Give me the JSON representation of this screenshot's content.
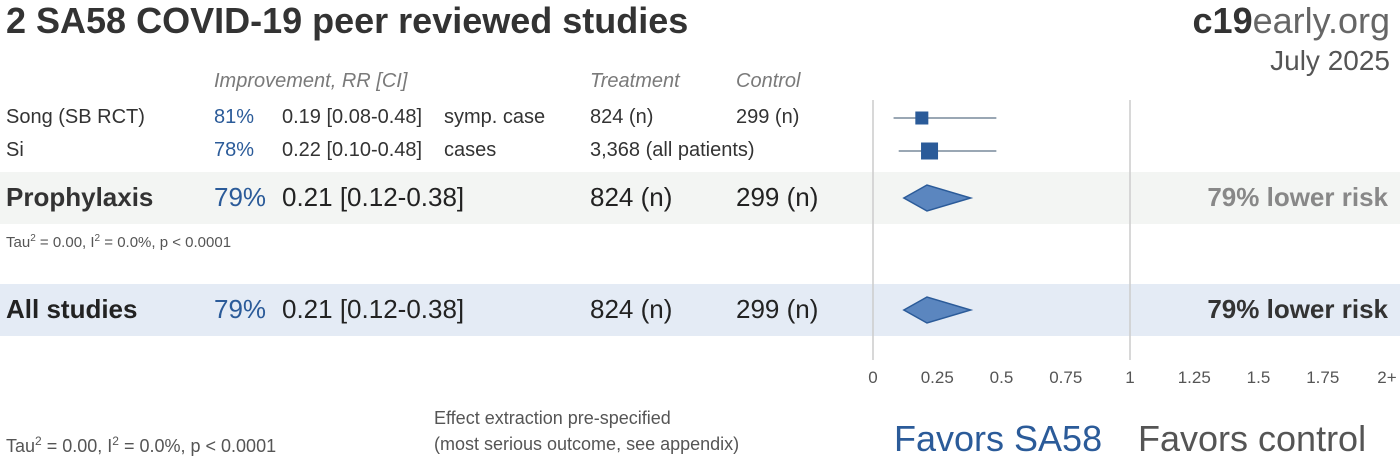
{
  "header": {
    "title": "2 SA58 COVID-19 peer reviewed studies",
    "brand_bold": "c19",
    "brand_light": "early.org",
    "date": "July 2025"
  },
  "columns": {
    "improvement": "Improvement, RR [CI]",
    "treatment": "Treatment",
    "control": "Control"
  },
  "studies": [
    {
      "name": "Song (SB RCT)",
      "improvement": "81%",
      "rr_text": "0.19 [0.08-0.48]",
      "outcome": "symp. case",
      "treatment": "824 (n)",
      "control": "299 (n)"
    },
    {
      "name": "Si",
      "improvement": "78%",
      "rr_text": "0.22 [0.10-0.48]",
      "outcome": "cases",
      "treatment": "3,368 (all patients)",
      "control": ""
    }
  ],
  "groups": [
    {
      "name": "Prophylaxis",
      "improvement": "79%",
      "rr_text": "0.21 [0.12-0.38]",
      "treatment": "824 (n)",
      "control": "299 (n)",
      "risk": "79% lower risk",
      "stats_pre": "Tau",
      "stats_mid": " = 0.00, I",
      "stats_post": " = 0.0%, p < 0.0001"
    },
    {
      "name": "All studies",
      "improvement": "79%",
      "rr_text": "0.21 [0.12-0.38]",
      "treatment": "824 (n)",
      "control": "299 (n)",
      "risk": "79% lower risk"
    }
  ],
  "footer": {
    "stats_pre": "Tau",
    "stats_mid": " = 0.00, I",
    "stats_post": " = 0.0%, p < 0.0001",
    "superscript": "2",
    "note_line1": "Effect extraction pre-specified",
    "note_line2": "(most serious outcome, see appendix)",
    "favors_left": "Favors SA58",
    "favors_right": "Favors control"
  },
  "chart_data": {
    "type": "forest",
    "x_ticks": [
      "0",
      "0.25",
      "0.5",
      "0.75",
      "1",
      "1.25",
      "1.5",
      "1.75",
      "2+"
    ],
    "xlim": [
      0,
      2
    ],
    "reference_line": 1,
    "studies": [
      {
        "name": "Song (SB RCT)",
        "rr": 0.19,
        "ci": [
          0.08,
          0.48
        ]
      },
      {
        "name": "Si",
        "rr": 0.22,
        "ci": [
          0.1,
          0.48
        ]
      }
    ],
    "pooled": [
      {
        "name": "Prophylaxis",
        "rr": 0.21,
        "ci": [
          0.12,
          0.38
        ]
      },
      {
        "name": "All studies",
        "rr": 0.21,
        "ci": [
          0.12,
          0.38
        ]
      }
    ],
    "colors": {
      "marker": "#2b5b99",
      "diamond_fill": "#5b86bf",
      "ci_line": "#9aa7b4",
      "axis": "#cccccc"
    }
  }
}
